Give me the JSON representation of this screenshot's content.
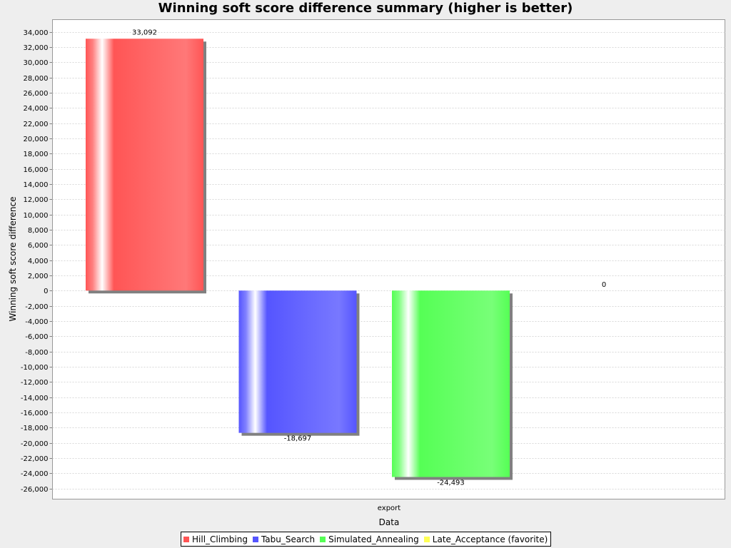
{
  "chart_data": {
    "type": "bar",
    "title": "Winning soft score difference summary (higher is better)",
    "xlabel": "Data",
    "ylabel": "Winning soft score difference",
    "categories": [
      "export"
    ],
    "series": [
      {
        "name": "Hill_Climbing",
        "values": [
          33092
        ],
        "label": "33,092",
        "color": "#ff5555"
      },
      {
        "name": "Tabu_Search",
        "values": [
          -18697
        ],
        "label": "-18,697",
        "color": "#5555ff"
      },
      {
        "name": "Simulated_Annealing",
        "values": [
          -24493
        ],
        "label": "-24,493",
        "color": "#55ff55"
      },
      {
        "name": "Late_Acceptance (favorite)",
        "values": [
          0
        ],
        "label": "0",
        "color": "#ffff55"
      }
    ],
    "ylim": [
      -27400,
      35600
    ],
    "yticks": [
      34000,
      32000,
      30000,
      28000,
      26000,
      24000,
      22000,
      20000,
      18000,
      16000,
      14000,
      12000,
      10000,
      8000,
      6000,
      4000,
      2000,
      0,
      -2000,
      -4000,
      -6000,
      -8000,
      -10000,
      -12000,
      -14000,
      -16000,
      -18000,
      -20000,
      -22000,
      -24000,
      -26000
    ],
    "ytick_labels": [
      "34,000",
      "32,000",
      "30,000",
      "28,000",
      "26,000",
      "24,000",
      "22,000",
      "20,000",
      "18,000",
      "16,000",
      "14,000",
      "12,000",
      "10,000",
      "8,000",
      "6,000",
      "4,000",
      "2,000",
      "0",
      "-2,000",
      "-4,000",
      "-6,000",
      "-8,000",
      "-10,000",
      "-12,000",
      "-14,000",
      "-16,000",
      "-18,000",
      "-20,000",
      "-22,000",
      "-24,000",
      "-26,000"
    ],
    "grid": true,
    "legend_position": "bottom"
  }
}
